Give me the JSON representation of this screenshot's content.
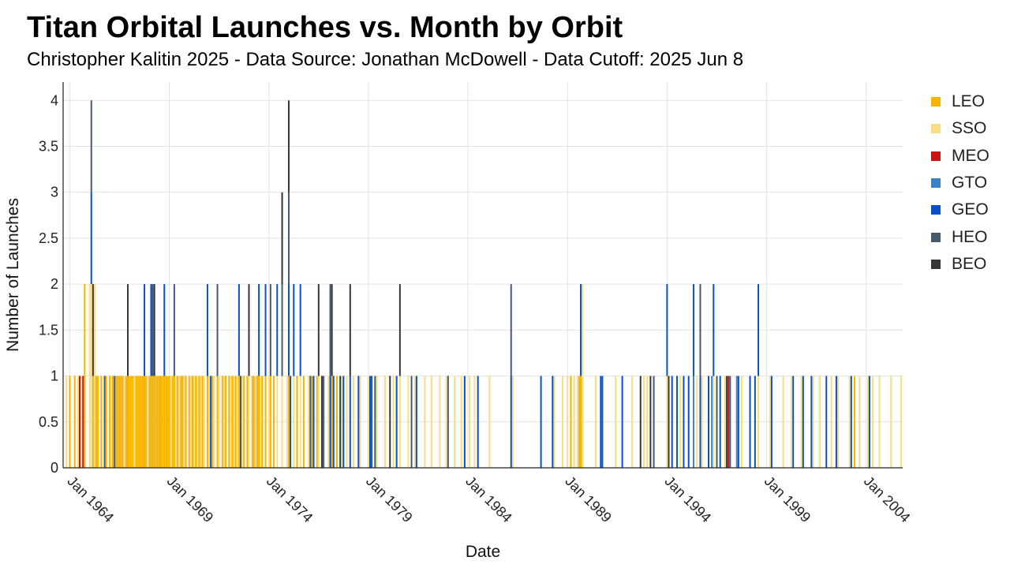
{
  "header": {
    "title": "Titan Orbital Launches vs. Month by Orbit",
    "subtitle": "Christopher Kalitin 2025 - Data Source: Jonathan McDowell - Data Cutoff: 2025 Jun 8"
  },
  "chart_data": {
    "type": "bar",
    "stacked": true,
    "xlabel": "Date",
    "ylabel": "Number of Launches",
    "xlim": [
      "1963-09",
      "2005-11"
    ],
    "ylim": [
      0,
      4.2
    ],
    "y_ticks": [
      "0",
      "0.5",
      "1",
      "1.5",
      "2",
      "2.5",
      "3",
      "3.5",
      "4"
    ],
    "x_ticks": [
      "Jan 1964",
      "Jan 1969",
      "Jan 1974",
      "Jan 1979",
      "Jan 1984",
      "Jan 1989",
      "Jan 1994",
      "Jan 1999",
      "Jan 2004"
    ],
    "grid": true,
    "legend_position": "right",
    "colors": {
      "LEO": "#F5B400",
      "SSO": "#FADC82",
      "MEO": "#C81414",
      "GTO": "#3C82C8",
      "GEO": "#0A50C8",
      "HEO": "#465A6E",
      "BEO": "#373737"
    },
    "series": [
      {
        "name": "LEO",
        "data": [
          [
            "1964-01",
            1
          ],
          [
            "1964-04",
            1
          ],
          [
            "1964-10",
            2
          ],
          [
            "1965-03",
            1
          ],
          [
            "1965-05",
            1
          ],
          [
            "1965-06",
            1
          ],
          [
            "1965-08",
            1
          ],
          [
            "1965-11",
            1
          ],
          [
            "1966-01",
            1
          ],
          [
            "1966-03",
            1
          ],
          [
            "1966-05",
            1
          ],
          [
            "1966-06",
            1
          ],
          [
            "1966-07",
            1
          ],
          [
            "1966-08",
            1
          ],
          [
            "1966-09",
            1
          ],
          [
            "1966-11",
            1
          ],
          [
            "1966-12",
            1
          ],
          [
            "1967-01",
            1
          ],
          [
            "1967-02",
            1
          ],
          [
            "1967-03",
            1
          ],
          [
            "1967-05",
            1
          ],
          [
            "1967-06",
            1
          ],
          [
            "1967-07",
            1
          ],
          [
            "1967-08",
            1
          ],
          [
            "1967-09",
            1
          ],
          [
            "1967-10",
            1
          ],
          [
            "1967-11",
            1
          ],
          [
            "1968-01",
            1
          ],
          [
            "1968-02",
            1
          ],
          [
            "1968-03",
            1
          ],
          [
            "1968-04",
            1
          ],
          [
            "1968-05",
            1
          ],
          [
            "1968-06",
            1
          ],
          [
            "1968-07",
            1
          ],
          [
            "1968-08",
            1
          ],
          [
            "1968-09",
            1
          ],
          [
            "1968-10",
            1
          ],
          [
            "1968-11",
            1
          ],
          [
            "1968-12",
            1
          ],
          [
            "1969-01",
            1
          ],
          [
            "1969-03",
            1
          ],
          [
            "1969-04",
            1
          ],
          [
            "1969-06",
            1
          ],
          [
            "1969-08",
            1
          ],
          [
            "1969-09",
            1
          ],
          [
            "1969-11",
            1
          ],
          [
            "1970-01",
            1
          ],
          [
            "1970-03",
            1
          ],
          [
            "1970-05",
            1
          ],
          [
            "1970-07",
            1
          ],
          [
            "1970-09",
            1
          ],
          [
            "1970-12",
            1
          ],
          [
            "1971-03",
            1
          ],
          [
            "1971-06",
            1
          ],
          [
            "1971-09",
            1
          ],
          [
            "1971-11",
            1
          ],
          [
            "1972-01",
            1
          ],
          [
            "1972-03",
            1
          ],
          [
            "1972-05",
            1
          ],
          [
            "1972-07",
            1
          ],
          [
            "1972-10",
            1
          ],
          [
            "1972-12",
            1
          ],
          [
            "1973-03",
            1
          ],
          [
            "1973-04",
            1
          ],
          [
            "1973-06",
            1
          ],
          [
            "1973-07",
            1
          ],
          [
            "1973-09",
            1
          ],
          [
            "1973-11",
            1
          ],
          [
            "1974-02",
            1
          ],
          [
            "1974-04",
            1
          ],
          [
            "1975-01",
            1
          ],
          [
            "1975-06",
            1
          ],
          [
            "1975-10",
            1
          ],
          [
            "1976-03",
            1
          ],
          [
            "1976-06",
            1
          ],
          [
            "1977-03",
            1
          ],
          [
            "1977-06",
            1
          ],
          [
            "1989-03",
            1
          ],
          [
            "1989-08",
            1
          ],
          [
            "1989-09",
            1
          ],
          [
            "2003-06",
            1
          ]
        ]
      },
      {
        "name": "SSO",
        "data": [
          [
            "1963-11",
            1
          ],
          [
            "1964-06",
            1
          ],
          [
            "1964-08",
            1
          ],
          [
            "1965-01",
            2
          ],
          [
            "1965-02",
            2
          ],
          [
            "1965-04",
            2
          ],
          [
            "1966-02",
            1
          ],
          [
            "1966-10",
            1
          ],
          [
            "1967-04",
            1
          ],
          [
            "1967-12",
            1
          ],
          [
            "1969-02",
            1
          ],
          [
            "1969-05",
            1
          ],
          [
            "1969-07",
            1
          ],
          [
            "1969-10",
            1
          ],
          [
            "1970-02",
            1
          ],
          [
            "1970-04",
            1
          ],
          [
            "1970-06",
            1
          ],
          [
            "1970-08",
            1
          ],
          [
            "1970-10",
            1
          ],
          [
            "1971-01",
            1
          ],
          [
            "1971-04",
            1
          ],
          [
            "1971-07",
            1
          ],
          [
            "1971-10",
            1
          ],
          [
            "1972-02",
            1
          ],
          [
            "1972-04",
            1
          ],
          [
            "1972-06",
            1
          ],
          [
            "1972-09",
            1
          ],
          [
            "1973-01",
            1
          ],
          [
            "1973-05",
            1
          ],
          [
            "1973-08",
            1
          ],
          [
            "1974-01",
            1
          ],
          [
            "1974-06",
            1
          ],
          [
            "1974-09",
            1
          ],
          [
            "1974-12",
            1
          ],
          [
            "1975-04",
            1
          ],
          [
            "1975-08",
            1
          ],
          [
            "1976-01",
            1
          ],
          [
            "1976-07",
            1
          ],
          [
            "1977-01",
            1
          ],
          [
            "1977-09",
            1
          ],
          [
            "1977-12",
            1
          ],
          [
            "1978-04",
            1
          ],
          [
            "1978-08",
            1
          ],
          [
            "1979-01",
            1
          ],
          [
            "1979-06",
            1
          ],
          [
            "1979-11",
            1
          ],
          [
            "1980-04",
            1
          ],
          [
            "1980-08",
            1
          ],
          [
            "1981-01",
            1
          ],
          [
            "1981-05",
            1
          ],
          [
            "1981-11",
            1
          ],
          [
            "1982-03",
            1
          ],
          [
            "1982-08",
            1
          ],
          [
            "1982-12",
            1
          ],
          [
            "1983-05",
            1
          ],
          [
            "1983-09",
            1
          ],
          [
            "1984-02",
            1
          ],
          [
            "1984-05",
            1
          ],
          [
            "1985-02",
            1
          ],
          [
            "1986-04",
            1
          ],
          [
            "1988-05",
            1
          ],
          [
            "1988-10",
            1
          ],
          [
            "1989-01",
            1
          ],
          [
            "1989-05",
            1
          ],
          [
            "1989-07",
            1
          ],
          [
            "1989-10",
            2
          ],
          [
            "1990-06",
            1
          ],
          [
            "1991-06",
            1
          ],
          [
            "1992-04",
            1
          ],
          [
            "1992-11",
            1
          ],
          [
            "1993-01",
            1
          ],
          [
            "1994-01",
            1
          ],
          [
            "1994-09",
            1
          ],
          [
            "1995-07",
            1
          ],
          [
            "1995-10",
            1
          ],
          [
            "1996-05",
            1
          ],
          [
            "1996-12",
            1
          ],
          [
            "1997-10",
            1
          ],
          [
            "1998-08",
            1
          ],
          [
            "1999-03",
            1
          ],
          [
            "1999-11",
            1
          ],
          [
            "2000-04",
            1
          ],
          [
            "2000-10",
            1
          ],
          [
            "2001-05",
            1
          ],
          [
            "2001-09",
            1
          ],
          [
            "2002-04",
            1
          ],
          [
            "2002-08",
            1
          ],
          [
            "2003-03",
            1
          ],
          [
            "2003-09",
            1
          ],
          [
            "2004-02",
            1
          ],
          [
            "2004-05",
            1
          ],
          [
            "2004-09",
            1
          ],
          [
            "2005-04",
            1
          ],
          [
            "2005-10",
            1
          ]
        ]
      },
      {
        "name": "MEO",
        "data": [
          [
            "1964-07",
            1
          ],
          [
            "1964-09",
            1
          ],
          [
            "1997-02",
            1
          ]
        ]
      },
      {
        "name": "GTO",
        "data": [
          [
            "1995-05",
            1
          ],
          [
            "1996-04",
            1
          ],
          [
            "1997-07",
            1
          ]
        ]
      },
      {
        "name": "GEO",
        "data": [
          [
            "1965-02",
            1
          ],
          [
            "1967-10",
            1
          ],
          [
            "1968-02",
            1
          ],
          [
            "1968-10",
            1
          ],
          [
            "1970-12",
            1
          ],
          [
            "1971-02",
            1
          ],
          [
            "1972-07",
            1
          ],
          [
            "1973-07",
            1
          ],
          [
            "1973-11",
            1
          ],
          [
            "1974-06",
            1
          ],
          [
            "1975-01",
            1
          ],
          [
            "1975-02",
            1
          ],
          [
            "1975-04",
            1
          ],
          [
            "1975-08",
            1
          ],
          [
            "1976-04",
            1
          ],
          [
            "1977-02",
            1
          ],
          [
            "1977-04",
            1
          ],
          [
            "1977-10",
            1
          ],
          [
            "1978-02",
            1
          ],
          [
            "1978-07",
            1
          ],
          [
            "1979-02",
            1
          ],
          [
            "1979-03",
            1
          ],
          [
            "1980-06",
            1
          ],
          [
            "1981-06",
            1
          ],
          [
            "1983-11",
            1
          ],
          [
            "1984-07",
            1
          ],
          [
            "1986-03",
            1
          ],
          [
            "1987-09",
            1
          ],
          [
            "1988-04",
            1
          ],
          [
            "1989-09",
            1
          ],
          [
            "1990-09",
            1
          ],
          [
            "1990-10",
            1
          ],
          [
            "1991-10",
            1
          ],
          [
            "1994-01",
            1
          ],
          [
            "1994-04",
            1
          ],
          [
            "1994-07",
            1
          ],
          [
            "1994-11",
            1
          ],
          [
            "1995-02",
            1
          ],
          [
            "1995-05",
            1
          ],
          [
            "1995-09",
            1
          ],
          [
            "1996-02",
            1
          ],
          [
            "1996-05",
            1
          ],
          [
            "1996-09",
            1
          ],
          [
            "1997-08",
            1
          ],
          [
            "1998-03",
            1
          ],
          [
            "1998-06",
            1
          ],
          [
            "1998-08",
            1
          ],
          [
            "1999-04",
            1
          ],
          [
            "2000-05",
            1
          ],
          [
            "2000-11",
            1
          ],
          [
            "2001-04",
            1
          ],
          [
            "2002-01",
            1
          ],
          [
            "2002-07",
            1
          ],
          [
            "2003-04",
            1
          ],
          [
            "2004-03",
            1
          ]
        ]
      },
      {
        "name": "HEO",
        "data": [
          [
            "1965-02",
            1
          ],
          [
            "1965-10",
            1
          ],
          [
            "1966-04",
            1
          ],
          [
            "1968-03",
            1
          ],
          [
            "1969-04",
            1
          ],
          [
            "1971-06",
            1
          ],
          [
            "1972-08",
            1
          ],
          [
            "1974-02",
            1
          ],
          [
            "1974-09",
            1
          ],
          [
            "1975-01",
            1
          ],
          [
            "1976-02",
            1
          ],
          [
            "1976-10",
            1
          ],
          [
            "1977-02",
            1
          ],
          [
            "1979-05",
            1
          ],
          [
            "1981-03",
            1
          ],
          [
            "1983-01",
            1
          ],
          [
            "1986-03",
            1
          ],
          [
            "1993-05",
            1
          ],
          [
            "1995-09",
            1
          ],
          [
            "1996-07",
            1
          ],
          [
            "1997-03",
            1
          ]
        ]
      },
      {
        "name": "BEO",
        "data": [
          [
            "1965-03",
            1
          ],
          [
            "1966-12",
            1
          ],
          [
            "1968-04",
            1
          ],
          [
            "1973-01",
            1
          ],
          [
            "1974-09",
            1
          ],
          [
            "1975-01",
            1
          ],
          [
            "1976-07",
            1
          ],
          [
            "1976-09",
            1
          ],
          [
            "1977-03",
            1
          ],
          [
            "1977-08",
            1
          ],
          [
            "1978-02",
            1
          ],
          [
            "1980-02",
            1
          ],
          [
            "1980-08",
            1
          ],
          [
            "1992-09",
            1
          ],
          [
            "1993-03",
            1
          ],
          [
            "1994-02",
            1
          ],
          [
            "1997-01",
            1
          ]
        ]
      }
    ]
  }
}
